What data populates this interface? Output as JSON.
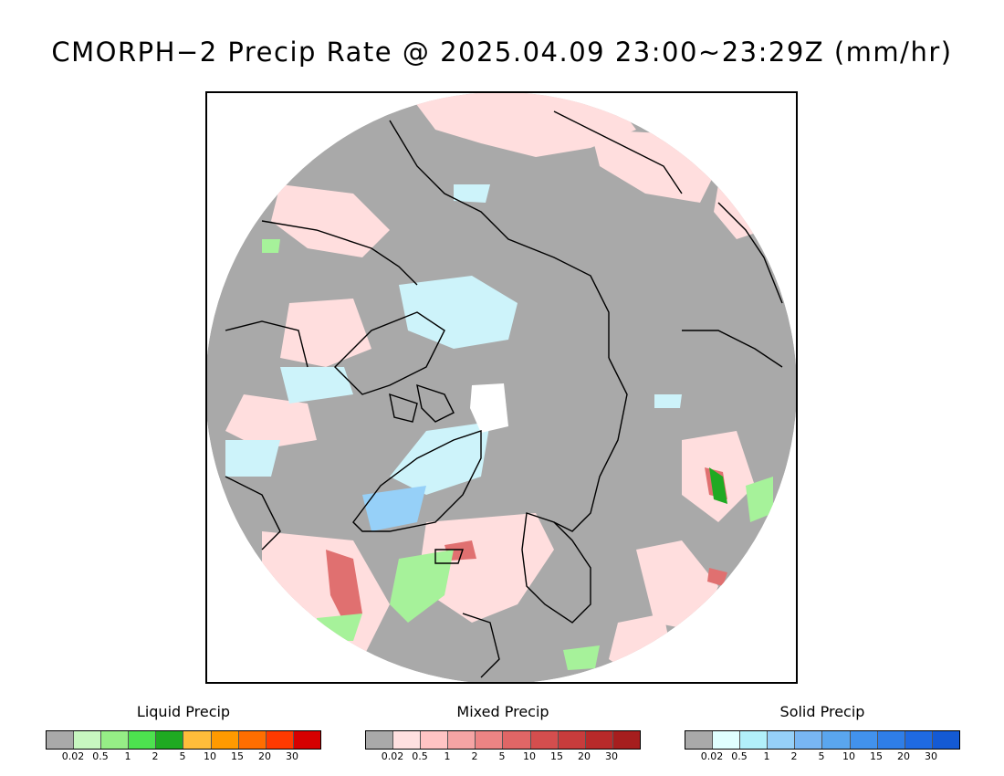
{
  "title": "CMORPH−2 Precip Rate @ 2025.04.09 23:00~23:29Z (mm/hr)",
  "legends": [
    {
      "title": "Liquid Precip",
      "colors": [
        "#a9a9a9",
        "#c8f7c0",
        "#96ee86",
        "#4de24f",
        "#1faa22",
        "#ffbd3a",
        "#ff9a00",
        "#ff6e00",
        "#ff3a00",
        "#d60000"
      ],
      "ticks": [
        "0.02",
        "0.5",
        "1",
        "2",
        "5",
        "10",
        "15",
        "20",
        "30"
      ]
    },
    {
      "title": "Mixed Precip",
      "colors": [
        "#a9a9a9",
        "#ffe0e0",
        "#ffc4c4",
        "#f5a4a4",
        "#ec8484",
        "#e06666",
        "#d44e4e",
        "#c83c3c",
        "#b82a2a",
        "#a61e1e"
      ],
      "ticks": [
        "0.02",
        "0.5",
        "1",
        "2",
        "5",
        "10",
        "15",
        "20",
        "30"
      ]
    },
    {
      "title": "Solid Precip",
      "colors": [
        "#a9a9a9",
        "#e0ffff",
        "#b2f0fa",
        "#96d0f8",
        "#78b6f3",
        "#5aa6ee",
        "#4292ec",
        "#2f7ee8",
        "#1f6ae2",
        "#145ad4"
      ],
      "ticks": [
        "0.02",
        "0.5",
        "1",
        "2",
        "5",
        "10",
        "15",
        "20",
        "30"
      ]
    }
  ],
  "map": {
    "ocean_color": "#a9a9a9",
    "coastline_color": "#000000"
  }
}
